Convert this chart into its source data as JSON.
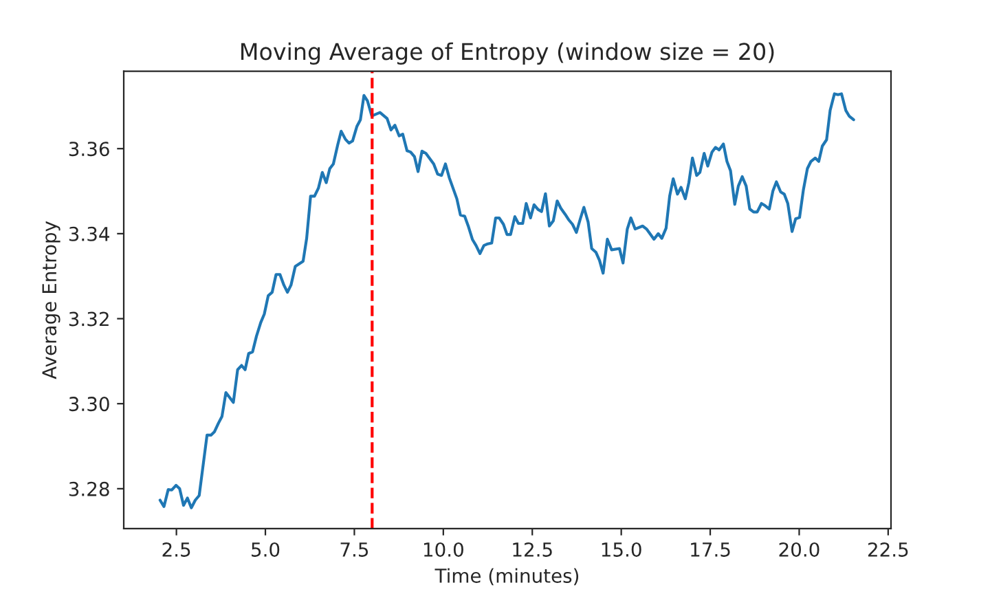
{
  "chart_data": {
    "type": "line",
    "title": "Moving Average of Entropy (window size = 20)",
    "xlabel": "Time (minutes)",
    "ylabel": "Average Entropy",
    "series": [
      {
        "color": "#1f77b4",
        "x": [
          2.04,
          2.15,
          2.27,
          2.37,
          2.49,
          2.59,
          2.7,
          2.81,
          2.92,
          3.03,
          3.14,
          3.36,
          3.47,
          3.57,
          3.68,
          3.78,
          3.89,
          4.1,
          4.22,
          4.33,
          4.43,
          4.53,
          4.64,
          4.75,
          4.87,
          4.97,
          5.08,
          5.19,
          5.3,
          5.41,
          5.52,
          5.62,
          5.72,
          5.84,
          6.06,
          6.16,
          6.27,
          6.38,
          6.49,
          6.6,
          6.71,
          6.81,
          6.91,
          7.03,
          7.13,
          7.25,
          7.35,
          7.45,
          7.57,
          7.67,
          7.77,
          7.87,
          7.99,
          8.22,
          8.42,
          8.53,
          8.64,
          8.76,
          8.86,
          8.98,
          9.08,
          9.19,
          9.29,
          9.4,
          9.51,
          9.73,
          9.84,
          9.95,
          10.06,
          10.17,
          10.38,
          10.48,
          10.6,
          10.7,
          10.82,
          10.92,
          11.03,
          11.14,
          11.25,
          11.36,
          11.47,
          11.57,
          11.69,
          11.79,
          11.89,
          12.01,
          12.11,
          12.23,
          12.33,
          12.45,
          12.55,
          12.66,
          12.76,
          12.87,
          12.98,
          13.09,
          13.2,
          13.3,
          13.42,
          13.52,
          13.63,
          13.74,
          13.85,
          13.95,
          14.07,
          14.17,
          14.29,
          14.39,
          14.49,
          14.61,
          14.73,
          14.95,
          15.05,
          15.17,
          15.27,
          15.39,
          15.6,
          15.71,
          15.92,
          16.04,
          16.14,
          16.26,
          16.36,
          16.46,
          16.58,
          16.68,
          16.8,
          16.9,
          17.0,
          17.12,
          17.21,
          17.33,
          17.43,
          17.55,
          17.65,
          17.75,
          17.87,
          17.97,
          18.07,
          18.19,
          18.29,
          18.4,
          18.51,
          18.61,
          18.72,
          18.82,
          18.94,
          19.04,
          19.16,
          19.26,
          19.36,
          19.48,
          19.58,
          19.68,
          19.8,
          19.9,
          20.01,
          20.12,
          20.23,
          20.33,
          20.45,
          20.55,
          20.65,
          20.77,
          20.87,
          20.99,
          21.09,
          21.19,
          21.31,
          21.41,
          21.53
        ],
        "values": [
          3.2773,
          3.2758,
          3.2798,
          3.2797,
          3.2808,
          3.28,
          3.2761,
          3.2778,
          3.2755,
          3.2773,
          3.2784,
          3.2926,
          3.2926,
          3.2934,
          3.2954,
          3.297,
          3.3026,
          3.3003,
          3.308,
          3.309,
          3.308,
          3.3118,
          3.3122,
          3.3159,
          3.3191,
          3.3211,
          3.3254,
          3.3262,
          3.3304,
          3.3304,
          3.3279,
          3.3262,
          3.3279,
          3.3323,
          3.3335,
          3.3389,
          3.3488,
          3.3488,
          3.3507,
          3.3544,
          3.352,
          3.3553,
          3.3564,
          3.3608,
          3.3641,
          3.3622,
          3.3613,
          3.3618,
          3.3652,
          3.3668,
          3.3725,
          3.3712,
          3.3677,
          3.3685,
          3.3671,
          3.3644,
          3.3655,
          3.363,
          3.3634,
          3.3595,
          3.3592,
          3.3581,
          3.3546,
          3.3594,
          3.3589,
          3.3564,
          3.354,
          3.3537,
          3.3564,
          3.3531,
          3.3482,
          3.3444,
          3.3441,
          3.3418,
          3.3386,
          3.3372,
          3.3353,
          3.3372,
          3.3376,
          3.3378,
          3.3437,
          3.3437,
          3.3422,
          3.3398,
          3.3398,
          3.344,
          3.3424,
          3.3424,
          3.3471,
          3.3437,
          3.3468,
          3.3457,
          3.3452,
          3.3494,
          3.3418,
          3.343,
          3.3477,
          3.346,
          3.3446,
          3.3433,
          3.3422,
          3.3403,
          3.3435,
          3.3462,
          3.3427,
          3.3365,
          3.3356,
          3.3337,
          3.3307,
          3.3387,
          3.3362,
          3.3365,
          3.3331,
          3.3411,
          3.3437,
          3.3411,
          3.3418,
          3.3411,
          3.3387,
          3.34,
          3.3389,
          3.3413,
          3.3488,
          3.3529,
          3.3493,
          3.3509,
          3.3482,
          3.352,
          3.3578,
          3.3537,
          3.3544,
          3.3589,
          3.3559,
          3.3592,
          3.3603,
          3.3597,
          3.3611,
          3.357,
          3.3548,
          3.3469,
          3.3512,
          3.3534,
          3.3512,
          3.3458,
          3.3451,
          3.3451,
          3.3471,
          3.3466,
          3.3458,
          3.35,
          3.3522,
          3.3498,
          3.3493,
          3.3471,
          3.3405,
          3.3435,
          3.3438,
          3.3504,
          3.3553,
          3.357,
          3.3578,
          3.357,
          3.3606,
          3.3621,
          3.369,
          3.3729,
          3.3727,
          3.3729,
          3.369,
          3.3676,
          3.3668
        ]
      }
    ],
    "ref_lines": [
      {
        "axis": "x",
        "value": 8.0,
        "color": "#ff0000",
        "line_style": "dashed"
      }
    ],
    "xlim": [
      1.02,
      22.58
    ],
    "ylim": [
      3.2706,
      3.3782
    ],
    "xticks": [
      {
        "value": 2.5,
        "label": "2.5"
      },
      {
        "value": 5,
        "label": "5.0"
      },
      {
        "value": 7.5,
        "label": "7.5"
      },
      {
        "value": 10,
        "label": "10.0"
      },
      {
        "value": 12.5,
        "label": "12.5"
      },
      {
        "value": 15,
        "label": "15.0"
      },
      {
        "value": 17.5,
        "label": "17.5"
      },
      {
        "value": 20,
        "label": "20.0"
      },
      {
        "value": 22.5,
        "label": "22.5"
      }
    ],
    "yticks": [
      {
        "value": 3.28,
        "label": "3.28"
      },
      {
        "value": 3.3,
        "label": "3.30"
      },
      {
        "value": 3.32,
        "label": "3.32"
      },
      {
        "value": 3.34,
        "label": "3.34"
      },
      {
        "value": 3.36,
        "label": "3.36"
      }
    ],
    "grid": false,
    "legend": false
  }
}
